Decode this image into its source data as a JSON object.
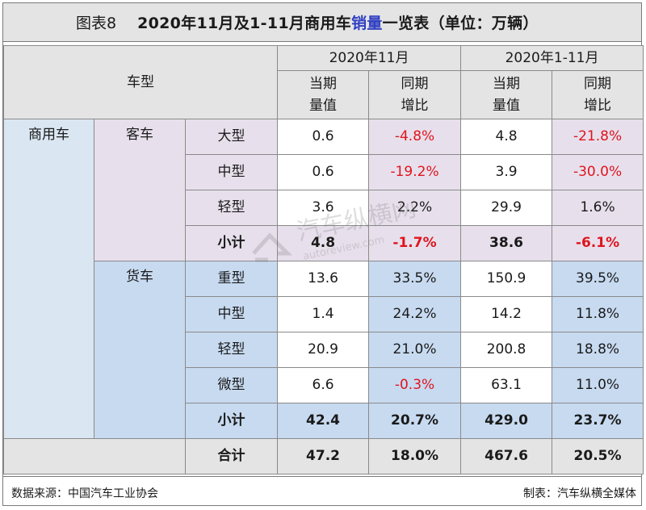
{
  "title": {
    "label": "图表8",
    "main_prefix": "2020年11月及1-11月商用车",
    "main_highlight": "销量",
    "main_suffix": "一览表（单位：万辆）"
  },
  "header": {
    "vehicle_type": "车型",
    "period_month": "2020年11月",
    "period_ytd": "2020年1-11月",
    "current_value_line1": "当期",
    "current_value_line2": "量值",
    "yoy_line1": "同期",
    "yoy_line2": "增比"
  },
  "category": "商用车",
  "groups": [
    {
      "name": "客车",
      "rows": [
        {
          "type": "大型",
          "m_val": "0.6",
          "m_yoy": "-4.8%",
          "y_val": "4.8",
          "y_yoy": "-21.8%"
        },
        {
          "type": "中型",
          "m_val": "0.6",
          "m_yoy": "-19.2%",
          "y_val": "3.9",
          "y_yoy": "-30.0%"
        },
        {
          "type": "轻型",
          "m_val": "3.6",
          "m_yoy": "2.2%",
          "y_val": "29.9",
          "y_yoy": "1.6%"
        }
      ],
      "subtotal": {
        "label": "小计",
        "m_val": "4.8",
        "m_yoy": "-1.7%",
        "y_val": "38.6",
        "y_yoy": "-6.1%"
      }
    },
    {
      "name": "货车",
      "rows": [
        {
          "type": "重型",
          "m_val": "13.6",
          "m_yoy": "33.5%",
          "y_val": "150.9",
          "y_yoy": "39.5%"
        },
        {
          "type": "中型",
          "m_val": "1.4",
          "m_yoy": "24.2%",
          "y_val": "14.2",
          "y_yoy": "11.8%"
        },
        {
          "type": "轻型",
          "m_val": "20.9",
          "m_yoy": "21.0%",
          "y_val": "200.8",
          "y_yoy": "18.8%"
        },
        {
          "type": "微型",
          "m_val": "6.6",
          "m_yoy": "-0.3%",
          "y_val": "63.1",
          "y_yoy": "11.0%"
        }
      ],
      "subtotal": {
        "label": "小计",
        "m_val": "42.4",
        "m_yoy": "20.7%",
        "y_val": "429.0",
        "y_yoy": "23.7%"
      }
    }
  ],
  "total": {
    "label": "合计",
    "m_val": "47.2",
    "m_yoy": "18.0%",
    "y_val": "467.6",
    "y_yoy": "20.5%"
  },
  "footer": {
    "source": "数据来源：中国汽车工业协会",
    "maker": "制表：汽车纵横全媒体"
  },
  "watermark": {
    "text_cn": "汽车纵横网",
    "text_url": "autoreview.com"
  },
  "colors": {
    "negative": "#e0141e",
    "title_highlight": "#2f3fc2",
    "header_bg": "#e4e4e4",
    "bus_bg": "#e7e0ec",
    "truck_bg": "#c7daf0",
    "category_bg": "#dae6f2"
  }
}
